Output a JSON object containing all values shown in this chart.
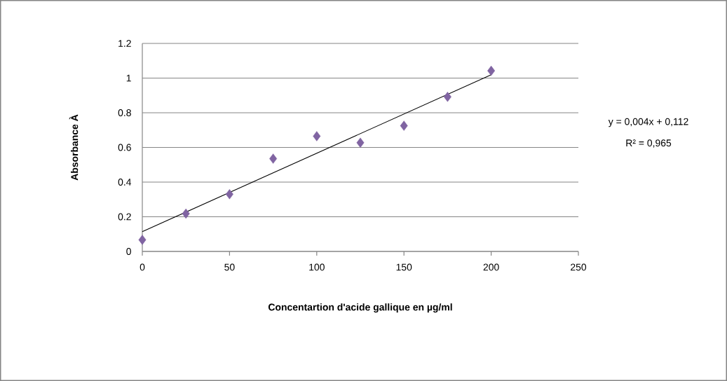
{
  "chart_data": {
    "type": "scatter",
    "xlabel": "Concentartion d'acide gallique en µg/ml",
    "ylabel": "Absorbance À",
    "xlim": [
      0,
      250
    ],
    "xticks": [
      0,
      50,
      100,
      150,
      200,
      250
    ],
    "ylim": [
      0,
      1.2
    ],
    "yticks": [
      0,
      0.2,
      0.4,
      0.6,
      0.8,
      1,
      1.2
    ],
    "grid": "y",
    "marker": "diamond",
    "series": [
      {
        "color": "#8064a2",
        "x": [
          0,
          25,
          50,
          75,
          100,
          125,
          150,
          175,
          200
        ],
        "values": [
          0.067,
          0.218,
          0.33,
          0.535,
          0.665,
          0.627,
          0.725,
          0.892,
          1.042
        ]
      },
      {
        "type": "line",
        "color": "#000000",
        "marker": "none",
        "x": [
          0,
          200
        ],
        "values": [
          0.114,
          1.019
        ]
      }
    ],
    "annotations": [
      "y = 0,004x + 0,112",
      "R² = 0,965"
    ]
  }
}
